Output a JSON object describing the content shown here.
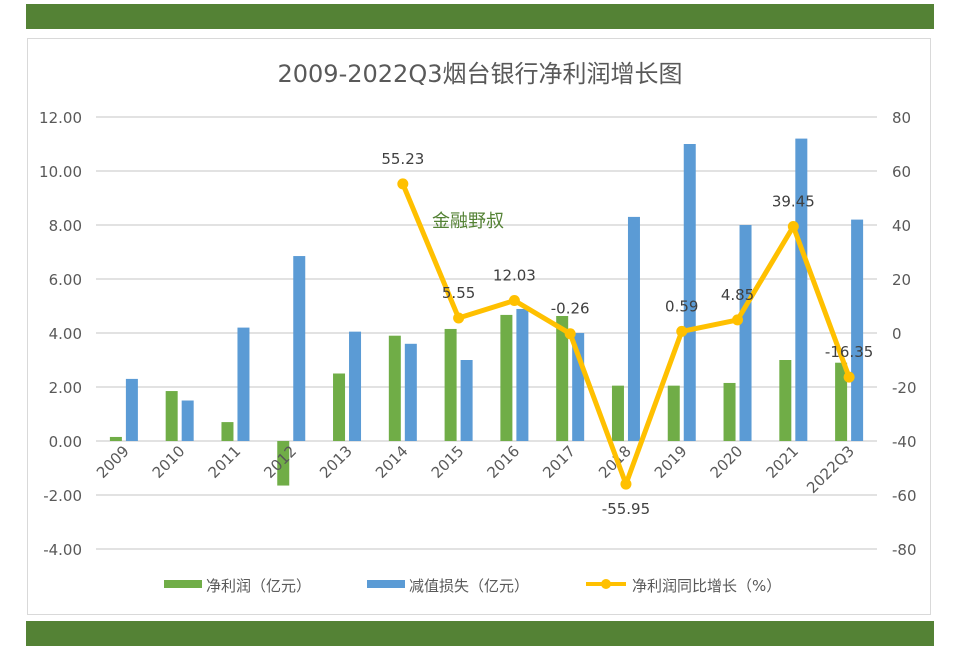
{
  "chart_data": {
    "type": "bar+line",
    "title": "2009-2022Q3烟台银行净利润增长图",
    "watermark": "金融野叔",
    "categories": [
      "2009",
      "2010",
      "2011",
      "2012",
      "2013",
      "2014",
      "2015",
      "2016",
      "2017",
      "2018",
      "2019",
      "2020",
      "2021",
      "2022Q3"
    ],
    "series": [
      {
        "name": "净利润（亿元）",
        "type": "bar",
        "axis": "left",
        "color": "#70ad47",
        "values": [
          0.15,
          1.85,
          0.7,
          -1.65,
          2.5,
          3.9,
          4.15,
          4.67,
          4.63,
          2.05,
          2.05,
          2.15,
          3.0,
          2.9
        ]
      },
      {
        "name": "减值损失（亿元）",
        "type": "bar",
        "axis": "left",
        "color": "#5b9bd5",
        "values": [
          2.3,
          1.5,
          4.2,
          6.85,
          4.05,
          3.6,
          3.0,
          4.89,
          4.0,
          8.3,
          11.0,
          8.0,
          11.2,
          8.2
        ]
      },
      {
        "name": "净利润同比增长（%）",
        "type": "line",
        "axis": "right",
        "color": "#ffc000",
        "values": [
          null,
          null,
          null,
          null,
          null,
          55.23,
          5.55,
          12.03,
          -0.26,
          -55.95,
          0.59,
          4.85,
          39.45,
          -16.35
        ],
        "labels": [
          "",
          "",
          "",
          "",
          "",
          "55.23",
          "5.55",
          "12.03",
          "-0.26",
          "-55.95",
          "0.59",
          "4.85",
          "39.45",
          "-16.35"
        ]
      }
    ],
    "left_axis": {
      "ylim": [
        -4,
        12
      ],
      "ticks": [
        "-4.00",
        "-2.00",
        "0.00",
        "2.00",
        "4.00",
        "6.00",
        "8.00",
        "10.00",
        "12.00"
      ]
    },
    "right_axis": {
      "ylim": [
        -80,
        80
      ],
      "ticks": [
        "-80",
        "-60",
        "-40",
        "-20",
        "0",
        "20",
        "40",
        "60",
        "80"
      ]
    },
    "grid": true,
    "legend": "bottom"
  }
}
